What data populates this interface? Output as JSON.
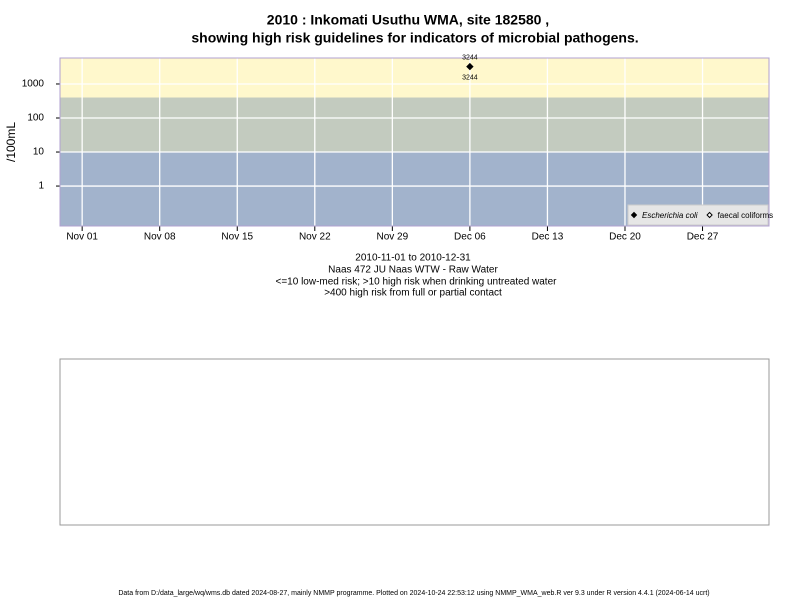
{
  "chart_data": {
    "type": "scatter",
    "title": "2010 : Inkomati Usuthu WMA, site 182580 ,",
    "subtitle": "showing high risk guidelines for indicators of microbial pathogens.",
    "y_label": "/100mL",
    "date_range": "2010-11-01 to 2010-12-31",
    "site": "Naas 472 JU Naas WTW - Raw Water",
    "notes": [
      "<=10 low-med risk; >10 high risk when drinking untreated water",
      ">400 high risk from full or partial contact"
    ],
    "footer": "Data from D:/data_large/wq/wms.db dated 2024-08-27, mainly NMMP programme. Plotted on 2024-10-24 22:53:12 using NMMP_WMA_web.R ver 9.3 under R version 4.4.1 (2024-06-14 ucrt)",
    "x": [
      "2010-12-06"
    ],
    "series": [
      {
        "name": "Escherichia coli",
        "color": "#000000",
        "filled": true,
        "values": [
          3244
        ],
        "value_labels": [
          "3244"
        ]
      },
      {
        "name": "faecal coliforms",
        "color": "#000000",
        "filled": false,
        "values": [
          null
        ]
      }
    ],
    "log_y": true,
    "ylim": [
      0.067,
      5800
    ],
    "yticks": [
      1,
      10,
      100,
      1000
    ],
    "xlim": [
      "2010-10-30",
      "2011-01-02"
    ],
    "xticks": [
      {
        "value": "2010-11-01",
        "label": "Nov 01"
      },
      {
        "value": "2010-11-08",
        "label": "Nov 08"
      },
      {
        "value": "2010-11-15",
        "label": "Nov 15"
      },
      {
        "value": "2010-11-22",
        "label": "Nov 22"
      },
      {
        "value": "2010-11-29",
        "label": "Nov 29"
      },
      {
        "value": "2010-12-06",
        "label": "Dec 06"
      },
      {
        "value": "2010-12-13",
        "label": "Dec 13"
      },
      {
        "value": "2010-12-20",
        "label": "Dec 20"
      },
      {
        "value": "2010-12-27",
        "label": "Dec 27"
      }
    ],
    "risk_bands": [
      {
        "to": 10,
        "color": "#a2b3cc"
      },
      {
        "from": 10,
        "to": 400,
        "color": "#c3cbbf"
      },
      {
        "from": 400,
        "color": "#fff8cc"
      }
    ],
    "grid": true,
    "legend": "bottom-right"
  }
}
